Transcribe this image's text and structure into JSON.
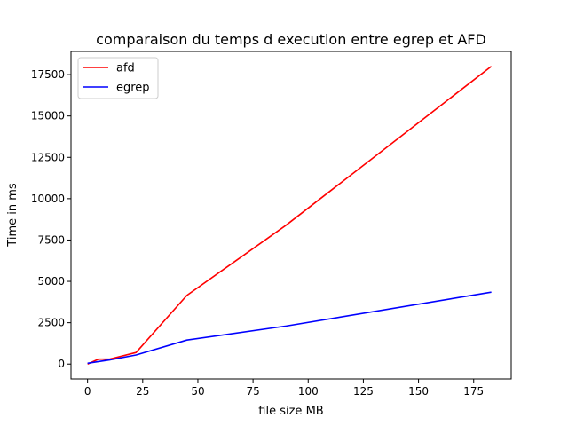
{
  "chart_data": {
    "type": "line",
    "title": "comparaison du temps d execution entre egrep et AFD",
    "xlabel": "file size MB",
    "ylabel": "Time in ms",
    "xlim": [
      -7.5,
      192
    ],
    "ylim": [
      -900,
      18900
    ],
    "xticks": [
      0,
      25,
      50,
      75,
      100,
      125,
      150,
      175
    ],
    "yticks": [
      0,
      2500,
      5000,
      7500,
      10000,
      12500,
      15000,
      17500
    ],
    "grid": false,
    "legend": "top-left",
    "series": [
      {
        "name": "afd",
        "color": "#ff0000",
        "x": [
          0,
          5,
          10,
          22,
          45,
          90,
          183
        ],
        "y": [
          0,
          300,
          300,
          700,
          4150,
          8400,
          18000
        ]
      },
      {
        "name": "egrep",
        "color": "#0000ff",
        "x": [
          0,
          5,
          10,
          22,
          45,
          90,
          183
        ],
        "y": [
          50,
          150,
          250,
          550,
          1450,
          2300,
          4350
        ]
      }
    ]
  }
}
